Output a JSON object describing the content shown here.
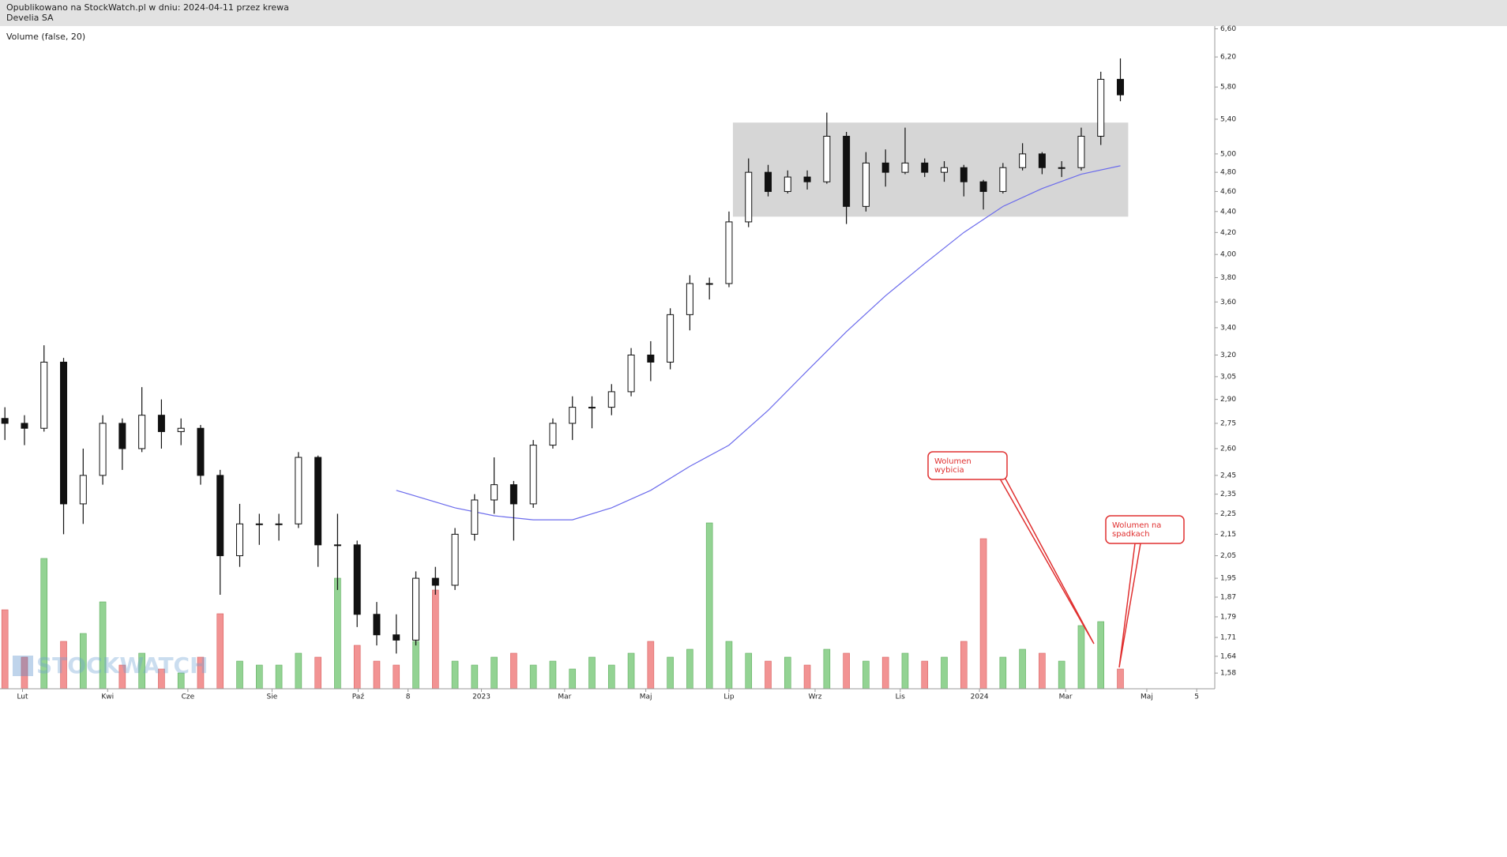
{
  "chart_data": {
    "type": "candlestick",
    "source": "Opublikowano na StockWatch.pl w dniu: 2024-04-11 przez krewa",
    "title": "Develia SA",
    "subtitle": "Volume (false, 20)",
    "watermark": "STOCKWATCH",
    "log_scale": true,
    "up_color": "#ffffff",
    "down_color": "#111111",
    "volume_up_color": "#93d393",
    "volume_down_color": "#f29393",
    "x": [
      0,
      2,
      4,
      6,
      8,
      10,
      12,
      14,
      16,
      18,
      20,
      22,
      24,
      26,
      28,
      30,
      32,
      34,
      36,
      38,
      40,
      42,
      44,
      46,
      48,
      50,
      52,
      54,
      56,
      58,
      60,
      62,
      64,
      66,
      68,
      70,
      72,
      74,
      76,
      78,
      80,
      82,
      84,
      86,
      88,
      90,
      92,
      94,
      96,
      98,
      100,
      102,
      104,
      106,
      108,
      110,
      112,
      114
    ],
    "open": [
      2.78,
      2.75,
      2.72,
      3.15,
      2.3,
      2.45,
      2.75,
      2.6,
      2.8,
      2.7,
      2.72,
      2.45,
      2.05,
      2.2,
      2.2,
      2.2,
      2.55,
      2.1,
      2.1,
      1.8,
      1.72,
      1.7,
      1.95,
      1.92,
      2.15,
      2.32,
      2.4,
      2.3,
      2.62,
      2.75,
      2.85,
      2.85,
      2.95,
      3.2,
      3.15,
      3.5,
      3.75,
      3.75,
      4.3,
      4.8,
      4.6,
      4.75,
      4.7,
      5.2,
      4.45,
      4.9,
      4.8,
      4.9,
      4.8,
      4.85,
      4.7,
      4.6,
      4.85,
      5.0,
      4.85,
      4.85,
      5.2,
      5.9
    ],
    "high": [
      2.85,
      2.8,
      3.27,
      3.18,
      2.6,
      2.8,
      2.78,
      2.98,
      2.9,
      2.78,
      2.74,
      2.48,
      2.3,
      2.25,
      2.25,
      2.58,
      2.56,
      2.25,
      2.12,
      1.85,
      1.8,
      1.98,
      2.0,
      2.18,
      2.35,
      2.55,
      2.42,
      2.65,
      2.78,
      2.92,
      2.92,
      3.0,
      3.25,
      3.3,
      3.55,
      3.82,
      3.8,
      4.4,
      4.95,
      4.88,
      4.82,
      4.82,
      5.48,
      5.25,
      5.02,
      5.05,
      5.3,
      4.95,
      4.92,
      4.88,
      4.72,
      4.9,
      5.12,
      5.02,
      4.92,
      5.3,
      6.0,
      6.18
    ],
    "low": [
      2.65,
      2.62,
      2.7,
      2.15,
      2.2,
      2.4,
      2.48,
      2.58,
      2.6,
      2.62,
      2.4,
      1.88,
      2.0,
      2.1,
      2.12,
      2.18,
      2.0,
      1.9,
      1.75,
      1.68,
      1.65,
      1.68,
      1.88,
      1.9,
      2.12,
      2.25,
      2.12,
      2.28,
      2.6,
      2.65,
      2.72,
      2.8,
      2.92,
      3.02,
      3.1,
      3.38,
      3.62,
      3.72,
      4.25,
      4.55,
      4.58,
      4.62,
      4.68,
      4.28,
      4.4,
      4.65,
      4.78,
      4.75,
      4.7,
      4.55,
      4.42,
      4.58,
      4.82,
      4.78,
      4.75,
      4.82,
      5.1,
      5.62
    ],
    "close": [
      2.75,
      2.72,
      3.15,
      2.3,
      2.45,
      2.75,
      2.6,
      2.8,
      2.7,
      2.72,
      2.45,
      2.05,
      2.2,
      2.2,
      2.2,
      2.55,
      2.1,
      2.1,
      1.8,
      1.72,
      1.7,
      1.95,
      1.92,
      2.15,
      2.32,
      2.4,
      2.3,
      2.62,
      2.75,
      2.85,
      2.85,
      2.95,
      3.2,
      3.15,
      3.5,
      3.75,
      3.75,
      4.3,
      4.8,
      4.6,
      4.75,
      4.7,
      5.2,
      4.45,
      4.9,
      4.8,
      4.9,
      4.8,
      4.85,
      4.7,
      4.6,
      4.85,
      5.0,
      4.85,
      4.85,
      5.2,
      5.9,
      5.7
    ],
    "volume": [
      100,
      40,
      165,
      60,
      70,
      110,
      30,
      45,
      25,
      20,
      40,
      95,
      35,
      30,
      30,
      45,
      40,
      140,
      55,
      35,
      30,
      60,
      125,
      35,
      30,
      40,
      45,
      30,
      35,
      25,
      40,
      30,
      45,
      60,
      40,
      50,
      210,
      60,
      45,
      35,
      40,
      30,
      50,
      45,
      35,
      40,
      45,
      35,
      40,
      60,
      190,
      40,
      50,
      45,
      35,
      80,
      85,
      25
    ],
    "ma": {
      "color": "#6b6bec",
      "x": [
        40,
        46,
        50,
        54,
        58,
        62,
        66,
        70,
        74,
        78,
        82,
        86,
        90,
        94,
        98,
        102,
        106,
        110,
        114
      ],
      "values": [
        2.37,
        2.28,
        2.24,
        2.22,
        2.22,
        2.28,
        2.37,
        2.5,
        2.62,
        2.83,
        3.09,
        3.37,
        3.65,
        3.92,
        4.2,
        4.45,
        4.63,
        4.78,
        4.87
      ]
    },
    "zone": {
      "color": "#d6d6d6",
      "low": 4.35,
      "high": 5.36,
      "start": 74.4,
      "end": 114.8
    },
    "annotations": [
      {
        "text": [
          "Wolumen",
          "wybicia"
        ]
      },
      {
        "text": [
          "Wolumen na",
          "spadkach"
        ]
      }
    ],
    "xlim": [
      -0.5,
      123
    ],
    "xticks": [
      {
        "value": 1.8,
        "label": "Lut"
      },
      {
        "value": 10.5,
        "label": "Kwi"
      },
      {
        "value": 18.7,
        "label": "Cze"
      },
      {
        "value": 27.3,
        "label": "Sie"
      },
      {
        "value": 36.1,
        "label": "Paź"
      },
      {
        "value": 41.2,
        "label": "8"
      },
      {
        "value": 48.7,
        "label": "2023"
      },
      {
        "value": 57.2,
        "label": "Mar"
      },
      {
        "value": 65.5,
        "label": "Maj"
      },
      {
        "value": 74,
        "label": "Lip"
      },
      {
        "value": 82.8,
        "label": "Wrz"
      },
      {
        "value": 91.5,
        "label": "Lis"
      },
      {
        "value": 99.6,
        "label": "2024"
      },
      {
        "value": 108.4,
        "label": "Mar"
      },
      {
        "value": 116.7,
        "label": "Maj"
      },
      {
        "value": 121.8,
        "label": "5"
      }
    ],
    "ylim": [
      1.526,
      6.64
    ],
    "yticks": [
      {
        "value": 6.6,
        "label": "6,60"
      },
      {
        "value": 6.2,
        "label": "6,20"
      },
      {
        "value": 5.8,
        "label": "5,80"
      },
      {
        "value": 5.4,
        "label": "5,40"
      },
      {
        "value": 5.0,
        "label": "5,00"
      },
      {
        "value": 4.8,
        "label": "4,80"
      },
      {
        "value": 4.6,
        "label": "4,60"
      },
      {
        "value": 4.4,
        "label": "4,40"
      },
      {
        "value": 4.2,
        "label": "4,20"
      },
      {
        "value": 4.0,
        "label": "4,00"
      },
      {
        "value": 3.8,
        "label": "3,80"
      },
      {
        "value": 3.6,
        "label": "3,60"
      },
      {
        "value": 3.4,
        "label": "3,40"
      },
      {
        "value": 3.2,
        "label": "3,20"
      },
      {
        "value": 3.05,
        "label": "3,05"
      },
      {
        "value": 2.9,
        "label": "2,90"
      },
      {
        "value": 2.75,
        "label": "2,75"
      },
      {
        "value": 2.6,
        "label": "2,60"
      },
      {
        "value": 2.45,
        "label": "2,45"
      },
      {
        "value": 2.35,
        "label": "2,35"
      },
      {
        "value": 2.25,
        "label": "2,25"
      },
      {
        "value": 2.15,
        "label": "2,15"
      },
      {
        "value": 2.05,
        "label": "2,05"
      },
      {
        "value": 1.95,
        "label": "1,95"
      },
      {
        "value": 1.87,
        "label": "1,87"
      },
      {
        "value": 1.79,
        "label": "1,79"
      },
      {
        "value": 1.71,
        "label": "1,71"
      },
      {
        "value": 1.64,
        "label": "1,64"
      },
      {
        "value": 1.58,
        "label": "1,58"
      }
    ],
    "y2lim": [
      0,
      250
    ]
  }
}
